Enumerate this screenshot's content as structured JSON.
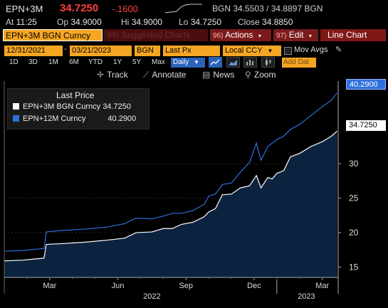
{
  "header": {
    "ticker": "EPN+3M",
    "last_price": "34.7250",
    "change": "-.1600",
    "bidask_label": "BGN",
    "bidask": "34.5503 / 34.8897",
    "bidask_suffix": "BGN",
    "at_label": "At",
    "time": "11:25",
    "op_label": "Op",
    "open": "34.9000",
    "hi_label": "Hi",
    "high": "34.9000",
    "lo_label": "Lo",
    "low": "34.7250",
    "close_label": "Close",
    "close": "34.8850"
  },
  "toolbar": {
    "title": "EPN+3M BGN Curncy",
    "suggested": "Suggested Charts",
    "suggested_num": "99)",
    "actions_num": "96)",
    "actions": "Actions",
    "edit_num": "97)",
    "edit": "Edit",
    "line_chart": "Line Chart",
    "start_date": "12/31/2021",
    "end_date": "03/21/2023",
    "source": "BGN",
    "field": "Last Px",
    "currency": "Local CCY",
    "mov_avgs": "Mov Avgs",
    "periods": [
      "1D",
      "3D",
      "1M",
      "6M",
      "YTD",
      "1Y",
      "5Y",
      "Max"
    ],
    "frequency": "Daily",
    "add_data": "Add Dat"
  },
  "tools": {
    "track": "Track",
    "annotate": "Annotate",
    "news": "News",
    "zoom": "Zoom"
  },
  "legend": {
    "title": "Last Price",
    "series": [
      {
        "name": "EPN+3M BGN Curncy",
        "value": "34.7250",
        "color": "#ffffff"
      },
      {
        "name": "EPN+12M Curncy",
        "value": "40.2900",
        "color": "#2f6fe0"
      }
    ]
  },
  "price_tags": {
    "blue": "40.2900",
    "white": "34.7250"
  },
  "colors": {
    "accent_orange": "#f5a623",
    "down_red": "#ff4040",
    "series_blue": "#2f6fe0",
    "area_fill": "#0c2340"
  },
  "chart_data": {
    "type": "line",
    "y_ticks": [
      "15",
      "20",
      "25",
      "30"
    ],
    "ylim": [
      13.5,
      42
    ],
    "x_month_labels": [
      "Mar",
      "Jun",
      "Sep",
      "Dec",
      "Mar"
    ],
    "x_year_labels": [
      "2022",
      "2023"
    ],
    "x_month_index": [
      2,
      5,
      8,
      11,
      14
    ],
    "series": [
      {
        "name": "EPN+3M BGN Curncy",
        "color": "#ffffff",
        "x": [
          0,
          0.8,
          1.4,
          1.75,
          1.85,
          2.5,
          3.5,
          4.5,
          5.3,
          5.8,
          6.5,
          7.0,
          7.4,
          7.8,
          8.3,
          8.8,
          9.0,
          9.3,
          9.6,
          10.0,
          10.4,
          10.8,
          11.1,
          11.3,
          11.6,
          11.8,
          12.0,
          12.3,
          12.6,
          13.0,
          13.5,
          14.0,
          14.4,
          14.65
        ],
        "values": [
          15.9,
          16.0,
          16.2,
          16.3,
          18.3,
          18.4,
          18.6,
          18.9,
          19.2,
          20.0,
          20.1,
          20.6,
          20.6,
          21.2,
          21.5,
          22.3,
          23.0,
          23.5,
          25.5,
          25.6,
          26.5,
          26.8,
          28.3,
          26.5,
          28.0,
          27.8,
          28.6,
          29.0,
          31.0,
          31.5,
          32.5,
          33.2,
          34.0,
          34.725
        ]
      },
      {
        "name": "EPN+12M Curncy",
        "color": "#2f6fe0",
        "x": [
          0,
          0.8,
          1.4,
          1.75,
          1.85,
          2.5,
          3.5,
          4.5,
          5.3,
          5.8,
          6.5,
          7.0,
          7.4,
          7.8,
          8.3,
          8.8,
          9.0,
          9.3,
          9.6,
          10.0,
          10.4,
          10.8,
          11.1,
          11.3,
          11.6,
          11.8,
          12.0,
          12.3,
          12.6,
          13.0,
          13.5,
          14.0,
          14.4,
          14.65
        ],
        "values": [
          17.3,
          17.4,
          17.6,
          17.7,
          20.1,
          20.3,
          20.5,
          20.8,
          21.3,
          22.1,
          22.0,
          22.4,
          22.8,
          22.8,
          23.2,
          24.1,
          25.3,
          25.6,
          27.0,
          27.2,
          28.8,
          30.2,
          33.0,
          30.5,
          32.5,
          33.0,
          33.5,
          34.0,
          35.0,
          35.7,
          37.0,
          38.3,
          39.2,
          40.29
        ]
      }
    ]
  }
}
